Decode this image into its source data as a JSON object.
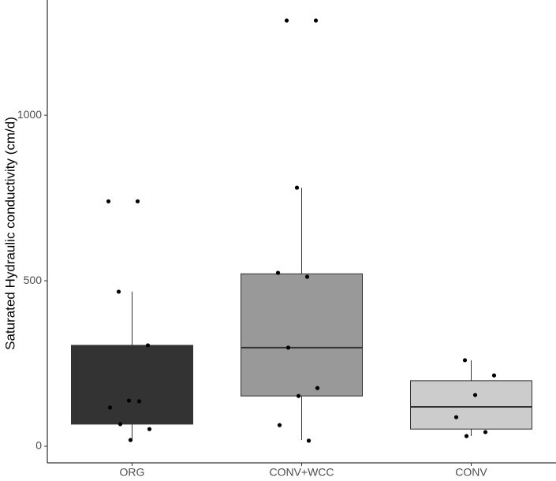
{
  "chart_data": {
    "type": "box",
    "y_label": "Saturated Hydraulic conductivity (cm/d)",
    "categories": [
      "ORG",
      "CONV+WCC",
      "CONV"
    ],
    "boxes": [
      {
        "whisker_low": 21,
        "q1": 67,
        "median": 125,
        "q3": 305,
        "whisker_high": 467,
        "color": "#333333"
      },
      {
        "whisker_low": 19,
        "q1": 152,
        "median": 298,
        "q3": 521,
        "whisker_high": 781,
        "color": "#999999"
      },
      {
        "whisker_low": 31,
        "q1": 52,
        "median": 119,
        "q3": 198,
        "whisker_high": 260,
        "color": "#cccccc"
      }
    ],
    "points": [
      [
        740,
        740,
        467,
        305,
        138,
        117,
        136,
        67,
        52,
        19
      ],
      [
        1286,
        1286,
        781,
        524,
        512,
        298,
        176,
        152,
        64,
        17
      ],
      [
        260,
        214,
        155,
        88,
        43,
        31
      ]
    ],
    "ylim": [
      -50,
      1348
    ],
    "yticks": [
      0,
      500,
      1000
    ]
  }
}
